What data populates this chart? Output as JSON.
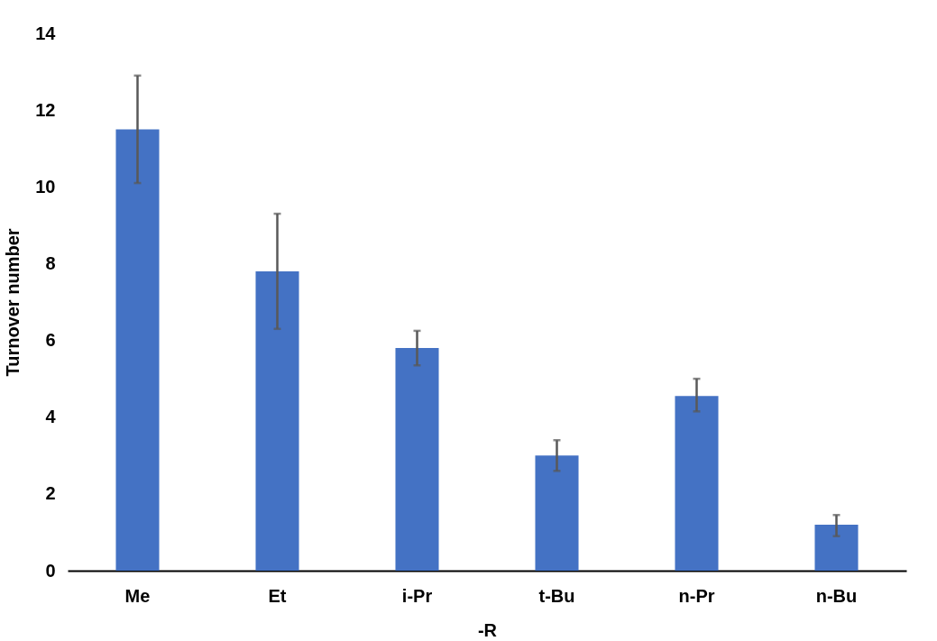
{
  "chart_data": {
    "type": "bar",
    "xlabel": "-R",
    "ylabel": "Turnover number",
    "categories": [
      "Me",
      "Et",
      "i-Pr",
      "t-Bu",
      "n-Pr",
      "n-Bu"
    ],
    "values": [
      11.5,
      7.8,
      5.8,
      3.0,
      4.55,
      1.2
    ],
    "errors": [
      [
        10.1,
        12.9
      ],
      [
        6.3,
        9.3
      ],
      [
        5.35,
        6.25
      ],
      [
        2.6,
        3.4
      ],
      [
        4.15,
        5.0
      ],
      [
        0.9,
        1.45
      ]
    ],
    "color": "#4472c4",
    "ylim": [
      0,
      14
    ],
    "yticks": [
      0,
      2,
      4,
      6,
      8,
      10,
      12,
      14
    ],
    "grid": false
  }
}
